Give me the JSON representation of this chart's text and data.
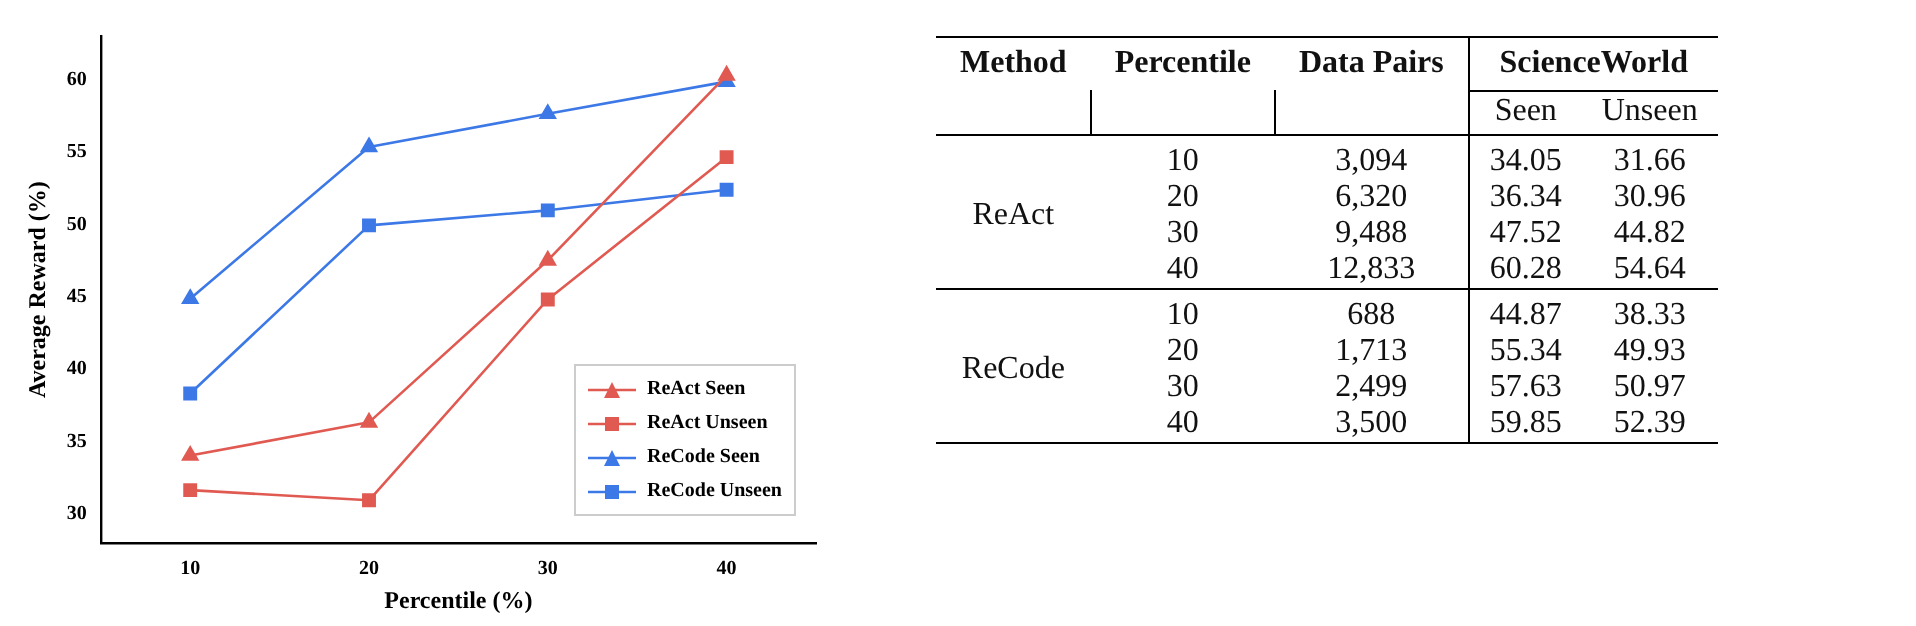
{
  "chart_data": [
    {
      "type": "line",
      "xlabel": "Percentile (%)",
      "ylabel": "Average Reward (%)",
      "categories": [
        "10",
        "20",
        "30",
        "40"
      ],
      "series": [
        {
          "name": "ReAct Seen",
          "color": "#e05a52",
          "marker": "triangle",
          "values": [
            34.05,
            36.34,
            47.52,
            60.28
          ]
        },
        {
          "name": "ReAct Unseen",
          "color": "#e05a52",
          "marker": "square",
          "values": [
            31.66,
            30.96,
            44.82,
            54.64
          ]
        },
        {
          "name": "ReCode Seen",
          "color": "#3c78e6",
          "marker": "triangle",
          "values": [
            44.87,
            55.34,
            57.63,
            59.85
          ]
        },
        {
          "name": "ReCode Unseen",
          "color": "#3c78e6",
          "marker": "square",
          "values": [
            38.33,
            49.93,
            50.97,
            52.39
          ]
        }
      ],
      "ylim": [
        28,
        63
      ],
      "yticks": [
        30,
        35,
        40,
        45,
        50,
        55,
        60
      ],
      "grid": false,
      "legend": "bottom right"
    },
    {
      "type": "other",
      "ylabel": "Method",
      "title": "ScienceWorld",
      "categories": [
        "Percentile",
        "Data Pairs",
        "Seen",
        "Unseen"
      ],
      "y_categories": [
        "ReAct",
        null,
        null,
        null,
        "ReCode",
        null,
        null,
        null
      ],
      "cell_labels": [
        [
          "10",
          "3,094",
          "34.05",
          "31.66"
        ],
        [
          "20",
          "6,320",
          "36.34",
          "30.96"
        ],
        [
          "30",
          "9,488",
          "47.52",
          "44.82"
        ],
        [
          "40",
          "12,833",
          "60.28",
          "54.64"
        ],
        [
          "10",
          "688",
          "44.87",
          "38.33"
        ],
        [
          "20",
          "1,713",
          "55.34",
          "49.93"
        ],
        [
          "30",
          "2,499",
          "57.63",
          "50.97"
        ],
        [
          "40",
          "3,500",
          "59.85",
          "52.39"
        ]
      ]
    }
  ]
}
